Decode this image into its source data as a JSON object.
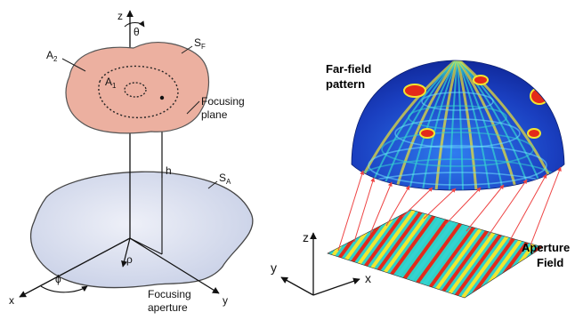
{
  "left_diagram": {
    "axis_z": "z",
    "axis_x": "x",
    "axis_y": "y",
    "theta": "θ",
    "phi": "ϕ",
    "rho": "ρ",
    "h": "h",
    "a2": "A",
    "a2_sub": "2",
    "a1": "A",
    "a1_sub": "1",
    "sf": "S",
    "sf_sub": "F",
    "sa": "S",
    "sa_sub": "A",
    "focusing_plane_line1": "Focusing",
    "focusing_plane_line2": "plane",
    "focusing_aperture_line1": "Focusing",
    "focusing_aperture_line2": "aperture",
    "colors": {
      "focusing_plane_fill": "#ecb0a0",
      "aperture_fill": "#cfd6ea",
      "outline": "#333333"
    }
  },
  "right_diagram": {
    "far_field_line1": "Far-field",
    "far_field_line2": "pattern",
    "aperture_line1": "Aperture",
    "aperture_line2": "Field",
    "axis_z": "z",
    "axis_y": "y",
    "axis_x": "x",
    "colors": {
      "ray": "#ee4444",
      "dome_base": "#1f4fd0",
      "hot": "#e42a1a",
      "warm": "#f2e531",
      "cool": "#35d3d0"
    }
  }
}
